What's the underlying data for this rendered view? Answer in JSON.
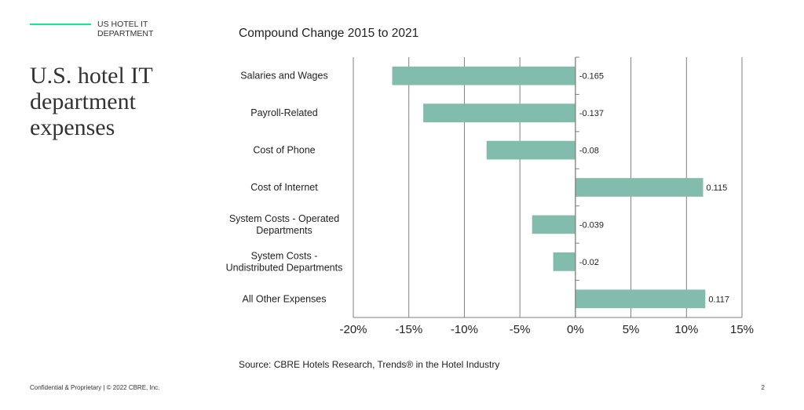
{
  "header": {
    "section_label": "US HOTEL IT DEPARTMENT",
    "title": "U.S. hotel IT department expenses"
  },
  "source": "Source: CBRE Hotels Research, Trends® in the Hotel Industry",
  "footer": {
    "confidential": "Confidential & Proprietary | © 2022 CBRE, Inc.",
    "page_number": "2"
  },
  "colors": {
    "bar": "#82bcac",
    "accent": "#17e88f",
    "grid": "#7f7f7f"
  },
  "chart_data": {
    "type": "bar",
    "orientation": "horizontal",
    "title": "Compound Change 2015 to 2021",
    "categories": [
      [
        "Salaries and Wages"
      ],
      [
        "Payroll-Related"
      ],
      [
        "Cost of Phone"
      ],
      [
        "Cost of Internet"
      ],
      [
        "System Costs - Operated",
        "Departments"
      ],
      [
        "System Costs -",
        "Undistributed Departments"
      ],
      [
        "All Other Expenses"
      ]
    ],
    "values": [
      -0.165,
      -0.137,
      -0.08,
      0.115,
      -0.039,
      -0.02,
      0.117
    ],
    "value_labels": [
      "-0.165",
      "-0.137",
      "-0.08",
      "0.115",
      "-0.039",
      "-0.02",
      "0.117"
    ],
    "xlim": [
      -0.2,
      0.15
    ],
    "xticks": [
      -0.2,
      -0.15,
      -0.1,
      -0.05,
      0,
      0.05,
      0.1,
      0.15
    ],
    "xtick_labels": [
      "-20%",
      "-15%",
      "-10%",
      "-5%",
      "0%",
      "5%",
      "10%",
      "15%"
    ],
    "xlabel": "",
    "ylabel": "",
    "grid": true,
    "legend": "none"
  }
}
